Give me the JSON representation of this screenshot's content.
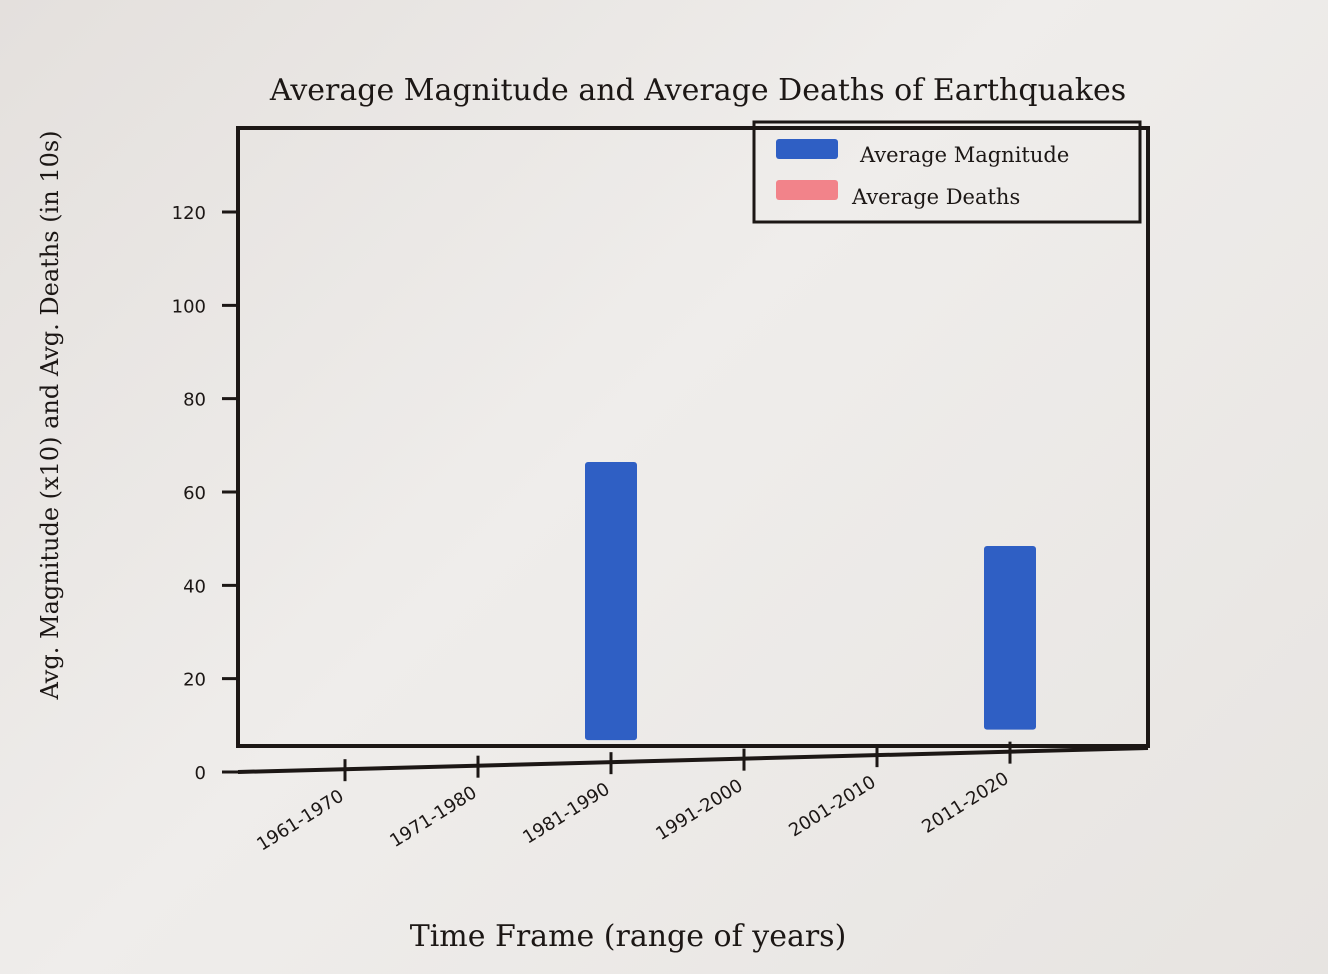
{
  "colors": {
    "magnitude": "#2f5fc4",
    "deaths": "#f2838a",
    "ink": "#1c1715"
  },
  "chart_data": {
    "type": "bar",
    "title": "Average Magnitude and Average Deaths of Earthquakes",
    "xlabel": "Time Frame (range of years)",
    "ylabel": "Avg. Magnitude (x10) and Avg. Deaths (in 10s)",
    "categories": [
      "1961-1970",
      "1971-1980",
      "1981-1990",
      "1991-2000",
      "2001-2010",
      "2011-2020"
    ],
    "series": [
      {
        "name": "Average Magnitude",
        "values": [
          0,
          0,
          69,
          0,
          0,
          51
        ]
      },
      {
        "name": "Average Deaths",
        "values": [
          0,
          0,
          0,
          0,
          0,
          0
        ]
      }
    ],
    "yticks": [
      0,
      20,
      40,
      60,
      80,
      100,
      120
    ],
    "ytick_labels": [
      "0",
      "20",
      "40",
      "60",
      "80",
      "100",
      "120"
    ],
    "ylim": [
      0,
      138
    ],
    "grid": false,
    "legend": "top-right"
  }
}
